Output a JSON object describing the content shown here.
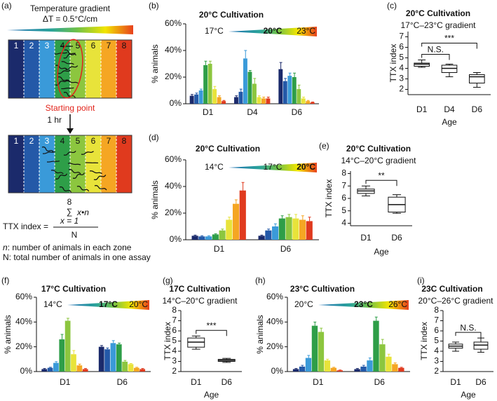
{
  "panel_a": {
    "label": "(a)",
    "title": "Temperature gradient",
    "delta": "ΔT = 0.5°C/cm",
    "zones": [
      "1",
      "2",
      "3",
      "4",
      "5",
      "6",
      "7",
      "8"
    ],
    "start": "Starting point",
    "time": "1 hr",
    "formula": {
      "lhs": "TTX index =",
      "upper": "8",
      "sum_symbol": "∑",
      "numerator": "x•n",
      "lower": "x = 1",
      "denominator": "N"
    },
    "notes": [
      {
        "symbol": "n",
        "text": ": number of animals in each zone"
      },
      {
        "symbol": "N",
        "text": ": total number of animals in one assay"
      }
    ]
  },
  "chart_data": [
    {
      "type": "bar",
      "panel": "(b)",
      "title": "20°C Cultivation",
      "ylabel": "% animals",
      "categories": [
        "D1",
        "D4",
        "D6"
      ],
      "series": [
        {
          "color": "#1b2a6b",
          "values": [
            6,
            5,
            26
          ],
          "errors": [
            1,
            1,
            5
          ]
        },
        {
          "color": "#2459a8",
          "values": [
            7,
            9,
            17
          ],
          "errors": [
            1,
            2,
            2
          ]
        },
        {
          "color": "#3a9ad9",
          "values": [
            10,
            34,
            21
          ],
          "errors": [
            1,
            6,
            2
          ]
        },
        {
          "color": "#2e9e48",
          "values": [
            29,
            24,
            20
          ],
          "errors": [
            3,
            1,
            3
          ]
        },
        {
          "color": "#8cc63f",
          "values": [
            30,
            15,
            11
          ],
          "errors": [
            2,
            4,
            3
          ]
        },
        {
          "color": "#e8e33a",
          "values": [
            11,
            5,
            4
          ],
          "errors": [
            2,
            1,
            1
          ]
        },
        {
          "color": "#f5a623",
          "values": [
            5,
            4,
            2
          ],
          "errors": [
            1,
            1,
            0.5
          ]
        },
        {
          "color": "#e03a1e",
          "values": [
            2,
            4,
            1
          ],
          "errors": [
            0.5,
            1,
            0.3
          ]
        }
      ],
      "ylim": [
        0,
        60
      ],
      "yticks": [
        {
          "value": 0,
          "label": "0%"
        },
        {
          "value": 20,
          "label": "20%"
        },
        {
          "value": 40,
          "label": "40%"
        },
        {
          "value": 60,
          "label": "60%"
        }
      ],
      "gradient": {
        "labels": [
          "17°C",
          "20°C",
          "23°C"
        ],
        "bold_index": 1
      }
    },
    {
      "type": "box",
      "panel": "(c)",
      "title": "20°C Cultivation",
      "subtitle": "17°C–23°C gradient",
      "ylabel": "TTX index",
      "xlabel": "Age",
      "categories": [
        "D1",
        "D4",
        "D6"
      ],
      "boxes": [
        {
          "min": 4.1,
          "q1": 4.2,
          "median": 4.4,
          "q3": 4.5,
          "max": 4.8
        },
        {
          "min": 3.2,
          "q1": 3.6,
          "median": 4.0,
          "q3": 4.3,
          "max": 4.4
        },
        {
          "min": 2.2,
          "q1": 2.6,
          "median": 3.2,
          "q3": 3.4,
          "max": 3.6
        }
      ],
      "ylim": [
        1.5,
        7.5
      ],
      "yticks": [
        2,
        3,
        4,
        5,
        6,
        7
      ],
      "significance": [
        {
          "categories": [
            "D1",
            "D4"
          ],
          "label": "N.S."
        },
        {
          "categories": [
            "D1",
            "D6"
          ],
          "label": "***"
        }
      ]
    },
    {
      "type": "bar",
      "panel": "(d)",
      "title": "20°C Cultivation",
      "ylabel": "% animals",
      "categories": [
        "D1",
        "D6"
      ],
      "series": [
        {
          "color": "#1b2a6b",
          "values": [
            3,
            3
          ],
          "errors": [
            0.5,
            0.5
          ]
        },
        {
          "color": "#2459a8",
          "values": [
            2.5,
            7
          ],
          "errors": [
            0.5,
            1
          ]
        },
        {
          "color": "#3a9ad9",
          "values": [
            2.5,
            10
          ],
          "errors": [
            0.5,
            2
          ]
        },
        {
          "color": "#2e9e48",
          "values": [
            4,
            16
          ],
          "errors": [
            0.5,
            2
          ]
        },
        {
          "color": "#8cc63f",
          "values": [
            7,
            17
          ],
          "errors": [
            1,
            2
          ]
        },
        {
          "color": "#e8e33a",
          "values": [
            15,
            16
          ],
          "errors": [
            2,
            3
          ]
        },
        {
          "color": "#f5a623",
          "values": [
            27,
            15
          ],
          "errors": [
            3,
            3
          ]
        },
        {
          "color": "#e03a1e",
          "values": [
            37,
            14
          ],
          "errors": [
            6,
            3
          ]
        }
      ],
      "ylim": [
        0,
        60
      ],
      "yticks": [
        {
          "value": 0,
          "label": "0%"
        },
        {
          "value": 20,
          "label": "20%"
        },
        {
          "value": 40,
          "label": "40%"
        },
        {
          "value": 60,
          "label": "60%"
        }
      ],
      "gradient": {
        "labels": [
          "14°C",
          "17°C",
          "20°C"
        ],
        "bold_index": 2
      }
    },
    {
      "type": "box",
      "panel": "(e)",
      "title": "20°C Cultivation",
      "subtitle": "14°C–20°C gradient",
      "ylabel": "TTX index",
      "xlabel": "Age",
      "categories": [
        "D1",
        "D6"
      ],
      "boxes": [
        {
          "min": 6.2,
          "q1": 6.4,
          "median": 6.6,
          "q3": 6.75,
          "max": 7.0
        },
        {
          "min": 4.8,
          "q1": 4.9,
          "median": 5.5,
          "q3": 6.1,
          "max": 6.3
        }
      ],
      "ylim": [
        3.8,
        8.2
      ],
      "yticks": [
        4,
        5,
        6,
        7,
        8
      ],
      "significance": [
        {
          "categories": [
            "D1",
            "D6"
          ],
          "label": "**"
        }
      ]
    },
    {
      "type": "bar",
      "panel": "(f)",
      "title": "17°C Cultivation",
      "ylabel": "% animals",
      "categories": [
        "D1",
        "D6"
      ],
      "series": [
        {
          "color": "#1b2a6b",
          "values": [
            2,
            20
          ],
          "errors": [
            0.5,
            1
          ]
        },
        {
          "color": "#2459a8",
          "values": [
            3,
            18
          ],
          "errors": [
            0.5,
            1
          ]
        },
        {
          "color": "#3a9ad9",
          "values": [
            7,
            23
          ],
          "errors": [
            1,
            2
          ]
        },
        {
          "color": "#2e9e48",
          "values": [
            26,
            22
          ],
          "errors": [
            4,
            1
          ]
        },
        {
          "color": "#8cc63f",
          "values": [
            41,
            8
          ],
          "errors": [
            2,
            1
          ]
        },
        {
          "color": "#e8e33a",
          "values": [
            14,
            6
          ],
          "errors": [
            3,
            0.5
          ]
        },
        {
          "color": "#f5a623",
          "values": [
            5,
            3
          ],
          "errors": [
            1,
            0.5
          ]
        },
        {
          "color": "#e03a1e",
          "values": [
            2,
            2
          ],
          "errors": [
            0.5,
            0.5
          ]
        }
      ],
      "ylim": [
        0,
        60
      ],
      "yticks": [
        {
          "value": 0,
          "label": "0%"
        },
        {
          "value": 20,
          "label": "20%"
        },
        {
          "value": 40,
          "label": "40%"
        },
        {
          "value": 60,
          "label": "60%"
        }
      ],
      "gradient": {
        "labels": [
          "14°C",
          "17°C",
          "20°C"
        ],
        "bold_index": 1
      }
    },
    {
      "type": "box",
      "panel": "(g)",
      "title": "17C Cultivation",
      "subtitle": "14°C–20°C gradient",
      "ylabel": "TTX index",
      "xlabel": "Age",
      "categories": [
        "D1",
        "D6"
      ],
      "boxes": [
        {
          "min": 4.2,
          "q1": 4.4,
          "median": 4.9,
          "q3": 5.3,
          "max": 5.5
        },
        {
          "min": 2.9,
          "q1": 3.0,
          "median": 3.1,
          "q3": 3.2,
          "max": 3.3
        }
      ],
      "ylim": [
        2,
        8
      ],
      "yticks": [
        2,
        3,
        4,
        5,
        6,
        7,
        8
      ],
      "significance": [
        {
          "categories": [
            "D1",
            "D6"
          ],
          "label": "***"
        }
      ]
    },
    {
      "type": "bar",
      "panel": "(h)",
      "title": "23°C Cultivation",
      "ylabel": "% animals",
      "categories": [
        "D1",
        "D6"
      ],
      "series": [
        {
          "color": "#1b2a6b",
          "values": [
            2,
            2
          ],
          "errors": [
            0.5,
            0.5
          ]
        },
        {
          "color": "#2459a8",
          "values": [
            4,
            4
          ],
          "errors": [
            1,
            1
          ]
        },
        {
          "color": "#3a9ad9",
          "values": [
            11,
            9
          ],
          "errors": [
            2,
            2
          ]
        },
        {
          "color": "#2e9e48",
          "values": [
            37,
            41
          ],
          "errors": [
            3,
            3
          ]
        },
        {
          "color": "#8cc63f",
          "values": [
            32,
            22
          ],
          "errors": [
            3,
            4
          ]
        },
        {
          "color": "#e8e33a",
          "values": [
            9,
            12
          ],
          "errors": [
            1,
            2
          ]
        },
        {
          "color": "#f5a623",
          "values": [
            3,
            6
          ],
          "errors": [
            0.5,
            1
          ]
        },
        {
          "color": "#e03a1e",
          "values": [
            1,
            3
          ],
          "errors": [
            0.3,
            0.5
          ]
        }
      ],
      "ylim": [
        0,
        60
      ],
      "yticks": [
        {
          "value": 0,
          "label": "0%"
        },
        {
          "value": 20,
          "label": "20%"
        },
        {
          "value": 40,
          "label": "40%"
        },
        {
          "value": 60,
          "label": "60%"
        }
      ],
      "gradient": {
        "labels": [
          "20°C",
          "23°C",
          "26°C"
        ],
        "bold_index": 1
      }
    },
    {
      "type": "box",
      "panel": "(i)",
      "title": "23C Cultivation",
      "subtitle": "20°C–26°C gradient",
      "ylabel": "TTX index",
      "xlabel": "Age",
      "categories": [
        "D1",
        "D6"
      ],
      "boxes": [
        {
          "min": 4.0,
          "q1": 4.3,
          "median": 4.5,
          "q3": 4.7,
          "max": 4.9
        },
        {
          "min": 3.9,
          "q1": 4.2,
          "median": 4.6,
          "q3": 4.9,
          "max": 5.3
        }
      ],
      "ylim": [
        2,
        8
      ],
      "yticks": [
        2,
        3,
        4,
        5,
        6,
        7,
        8
      ],
      "significance": [
        {
          "categories": [
            "D1",
            "D6"
          ],
          "label": "N.S."
        }
      ]
    }
  ]
}
